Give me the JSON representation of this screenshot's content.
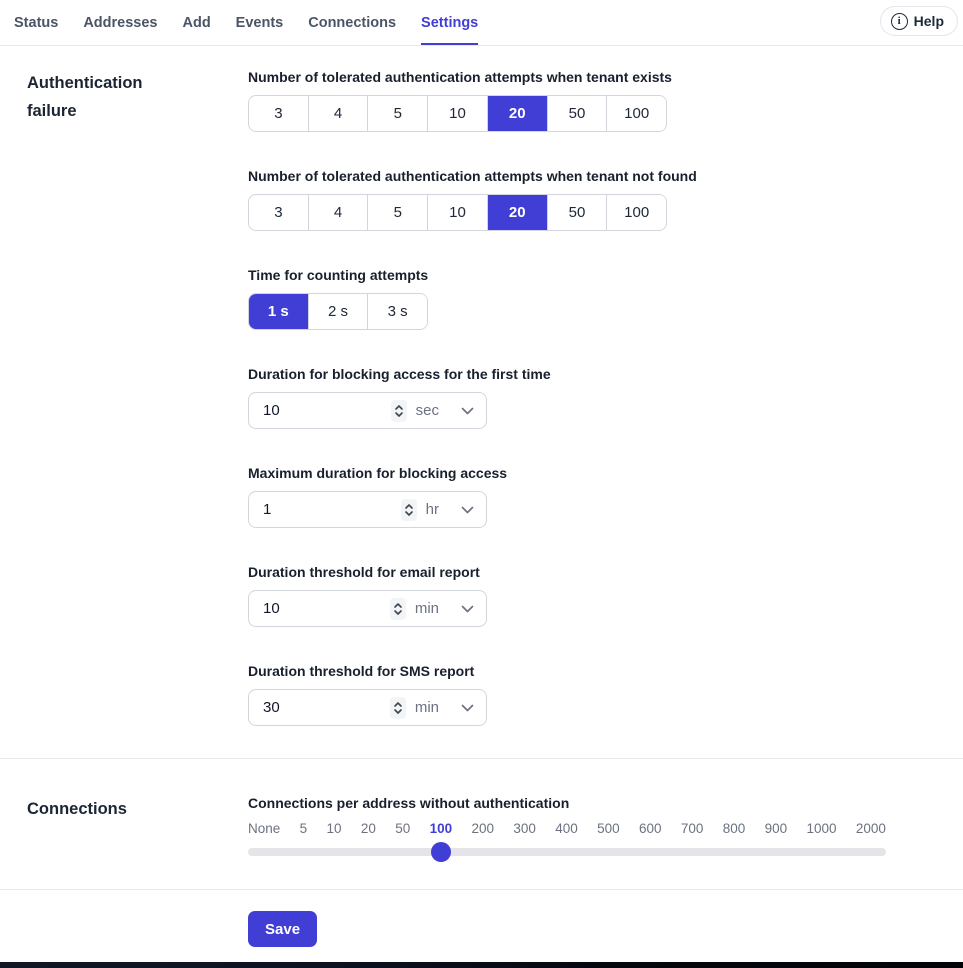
{
  "accent_color": "#413ed6",
  "nav": {
    "tabs": [
      {
        "label": "Status"
      },
      {
        "label": "Addresses"
      },
      {
        "label": "Add"
      },
      {
        "label": "Events"
      },
      {
        "label": "Connections"
      },
      {
        "label": "Settings"
      }
    ],
    "active_tab": "Settings",
    "help": {
      "label": "Help",
      "icon": "info-icon"
    }
  },
  "auth_failure": {
    "title": "Authentication failure",
    "tenant_exists": {
      "label": "Number of tolerated authentication attempts when tenant exists",
      "options": [
        "3",
        "4",
        "5",
        "10",
        "20",
        "50",
        "100"
      ],
      "selected": "20"
    },
    "tenant_not_found": {
      "label": "Number of tolerated authentication attempts when tenant not found",
      "options": [
        "3",
        "4",
        "5",
        "10",
        "20",
        "50",
        "100"
      ],
      "selected": "20"
    },
    "counting_time": {
      "label": "Time for counting attempts",
      "options": [
        "1 s",
        "2 s",
        "3 s"
      ],
      "selected": "1 s"
    },
    "block_first": {
      "label": "Duration for blocking access for the first time",
      "value": "10",
      "unit": "sec"
    },
    "block_max": {
      "label": "Maximum duration for blocking access",
      "value": "1",
      "unit": "hr"
    },
    "email_threshold": {
      "label": "Duration threshold for email report",
      "value": "10",
      "unit": "min"
    },
    "sms_threshold": {
      "label": "Duration threshold for SMS report",
      "value": "30",
      "unit": "min"
    }
  },
  "connections": {
    "title": "Connections",
    "slider": {
      "label": "Connections per address without authentication",
      "options": [
        "None",
        "5",
        "10",
        "20",
        "50",
        "100",
        "200",
        "300",
        "400",
        "500",
        "600",
        "700",
        "800",
        "900",
        "1000",
        "2000"
      ],
      "selected": "100"
    }
  },
  "save_label": "Save"
}
